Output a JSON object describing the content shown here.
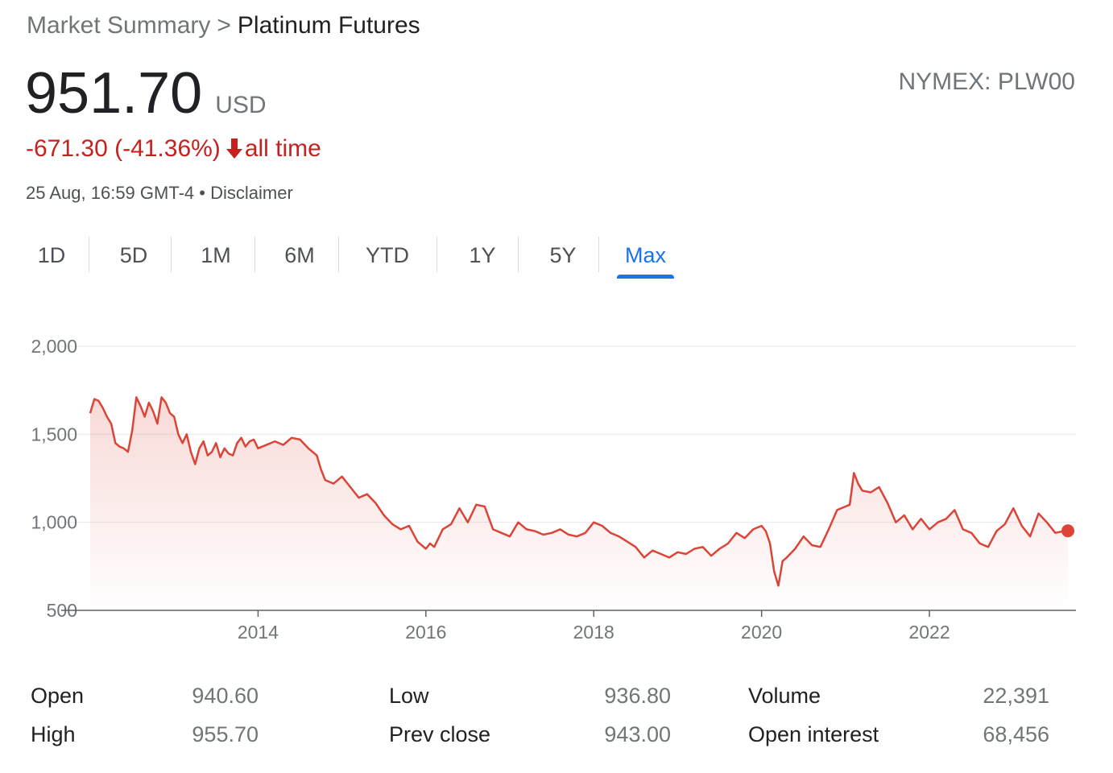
{
  "breadcrumb": {
    "parent": "Market Summary",
    "separator": ">",
    "current": "Platinum Futures"
  },
  "quote": {
    "price": "951.70",
    "currency": "USD",
    "ticker": "NYMEX: PLW00",
    "change": "-671.30 (-41.36%)",
    "change_period": "all time",
    "timestamp": "25 Aug, 16:59 GMT-4",
    "bullet": "•",
    "disclaimer": "Disclaimer"
  },
  "ranges": {
    "tabs": [
      "1D",
      "5D",
      "1M",
      "6M",
      "YTD",
      "1Y",
      "5Y",
      "Max"
    ],
    "active": "Max"
  },
  "colors": {
    "line": "#db4437",
    "positive": "#137333",
    "negative": "#c5221f",
    "accent": "#1a73e8"
  },
  "chart_data": {
    "type": "area",
    "title": "",
    "xlabel": "",
    "ylabel": "",
    "y_ticks": [
      500,
      1000,
      1500,
      2000
    ],
    "y_tick_labels": [
      "500",
      "1,000",
      "1,500",
      "2,000"
    ],
    "x_ticks": [
      2014,
      2016,
      2018,
      2020,
      2022
    ],
    "x_tick_labels": [
      "2014",
      "2016",
      "2018",
      "2020",
      "2022"
    ],
    "xlim": [
      2012.0,
      2023.65
    ],
    "ylim": [
      500,
      2000
    ],
    "grid": true,
    "legend": "none",
    "series": [
      {
        "x": [
          2012.0,
          2012.05,
          2012.1,
          2012.15,
          2012.2,
          2012.25,
          2012.3,
          2012.35,
          2012.4,
          2012.45,
          2012.5,
          2012.55,
          2012.6,
          2012.65,
          2012.7,
          2012.75,
          2012.8,
          2012.85,
          2012.9,
          2012.95,
          2013.0,
          2013.05,
          2013.1,
          2013.15,
          2013.2,
          2013.25,
          2013.3,
          2013.35,
          2013.4,
          2013.45,
          2013.5,
          2013.55,
          2013.6,
          2013.65,
          2013.7,
          2013.75,
          2013.8,
          2013.85,
          2013.9,
          2013.95,
          2014.0,
          2014.1,
          2014.2,
          2014.3,
          2014.4,
          2014.5,
          2014.6,
          2014.7,
          2014.75,
          2014.8,
          2014.85,
          2014.9,
          2015.0,
          2015.1,
          2015.2,
          2015.3,
          2015.4,
          2015.5,
          2015.6,
          2015.7,
          2015.8,
          2015.9,
          2016.0,
          2016.05,
          2016.1,
          2016.2,
          2016.3,
          2016.4,
          2016.5,
          2016.6,
          2016.7,
          2016.8,
          2016.9,
          2017.0,
          2017.1,
          2017.2,
          2017.3,
          2017.4,
          2017.5,
          2017.6,
          2017.7,
          2017.8,
          2017.9,
          2018.0,
          2018.1,
          2018.2,
          2018.3,
          2018.4,
          2018.5,
          2018.6,
          2018.7,
          2018.8,
          2018.9,
          2019.0,
          2019.1,
          2019.2,
          2019.3,
          2019.4,
          2019.5,
          2019.6,
          2019.7,
          2019.8,
          2019.9,
          2020.0,
          2020.05,
          2020.1,
          2020.15,
          2020.2,
          2020.25,
          2020.3,
          2020.4,
          2020.5,
          2020.6,
          2020.7,
          2020.8,
          2020.9,
          2021.0,
          2021.05,
          2021.1,
          2021.15,
          2021.2,
          2021.3,
          2021.4,
          2021.5,
          2021.6,
          2021.7,
          2021.8,
          2021.9,
          2022.0,
          2022.1,
          2022.2,
          2022.3,
          2022.4,
          2022.5,
          2022.6,
          2022.7,
          2022.8,
          2022.9,
          2023.0,
          2023.1,
          2023.2,
          2023.3,
          2023.4,
          2023.5,
          2023.6,
          2023.65
        ],
        "values": [
          1620,
          1700,
          1690,
          1650,
          1600,
          1560,
          1450,
          1430,
          1420,
          1400,
          1520,
          1710,
          1660,
          1600,
          1680,
          1630,
          1560,
          1710,
          1680,
          1620,
          1600,
          1500,
          1450,
          1500,
          1400,
          1330,
          1420,
          1460,
          1380,
          1400,
          1450,
          1370,
          1420,
          1390,
          1380,
          1450,
          1480,
          1430,
          1460,
          1470,
          1420,
          1440,
          1460,
          1440,
          1480,
          1470,
          1420,
          1380,
          1300,
          1240,
          1230,
          1220,
          1260,
          1200,
          1140,
          1160,
          1110,
          1040,
          990,
          960,
          980,
          890,
          850,
          880,
          860,
          960,
          990,
          1080,
          1000,
          1100,
          1090,
          960,
          940,
          920,
          1000,
          960,
          950,
          930,
          940,
          960,
          930,
          920,
          940,
          1000,
          980,
          940,
          920,
          890,
          860,
          800,
          840,
          820,
          800,
          830,
          820,
          850,
          860,
          810,
          850,
          880,
          940,
          910,
          960,
          980,
          950,
          880,
          720,
          640,
          780,
          800,
          850,
          920,
          870,
          860,
          960,
          1070,
          1090,
          1100,
          1280,
          1220,
          1180,
          1170,
          1200,
          1110,
          1000,
          1040,
          960,
          1020,
          960,
          1000,
          1020,
          1070,
          960,
          940,
          880,
          860,
          950,
          990,
          1080,
          980,
          920,
          1050,
          1000,
          940,
          950,
          952
        ]
      }
    ],
    "last_point": {
      "x": 2023.65,
      "y": 951.7
    }
  },
  "stats": {
    "columns": [
      {
        "rows": [
          {
            "label": "Open",
            "value": "940.60"
          },
          {
            "label": "High",
            "value": "955.70"
          }
        ]
      },
      {
        "rows": [
          {
            "label": "Low",
            "value": "936.80"
          },
          {
            "label": "Prev close",
            "value": "943.00"
          }
        ]
      },
      {
        "rows": [
          {
            "label": "Volume",
            "value": "22,391"
          },
          {
            "label": "Open interest",
            "value": "68,456"
          }
        ]
      }
    ]
  }
}
